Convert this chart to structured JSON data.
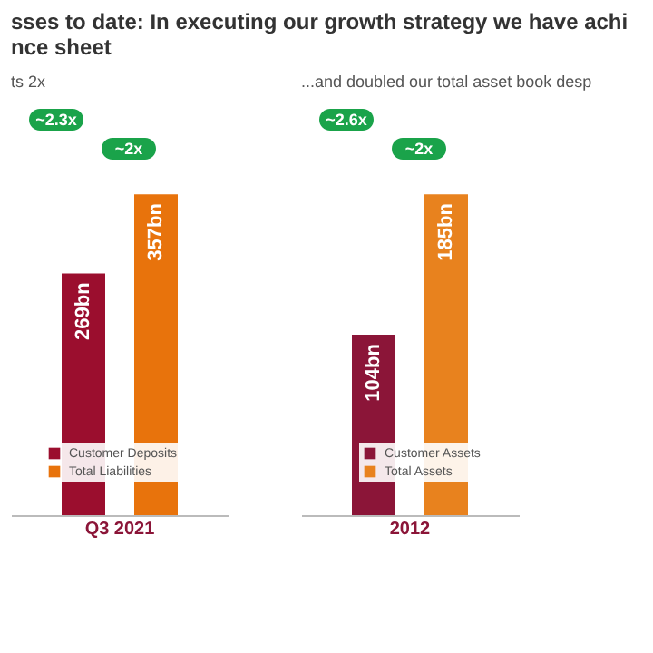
{
  "chart_data": [
    {
      "type": "bar",
      "title": "sses to date: In executing our growth strategy we have achi\nnce sheet",
      "subtitle": "ts 2x",
      "categories": [
        "Q3 2021"
      ],
      "legend": "bottom left",
      "data_labels": false,
      "annotations": [
        "~2.3x",
        "~2x"
      ],
      "series": [
        {
          "name": "Customer Deposits",
          "color": "#9b0e2e",
          "values": [
            269
          ],
          "value_labels": [
            "269bn"
          ]
        },
        {
          "name": "Total Liabilities",
          "color": "#e8730c",
          "values": [
            357
          ],
          "value_labels": [
            "357bn"
          ]
        }
      ]
    },
    {
      "type": "bar",
      "subtitle": "...and doubled our total asset book desp",
      "categories": [
        "2012"
      ],
      "legend": "bottom right",
      "data_labels": false,
      "annotations": [
        "~2.6x",
        "~2x"
      ],
      "series": [
        {
          "name": "Customer Assets",
          "color": "#8b1538",
          "values": [
            104
          ],
          "value_labels": [
            "104bn"
          ]
        },
        {
          "name": "Total Assets",
          "color": "#e8821e",
          "values": [
            185
          ],
          "value_labels": [
            "185bn"
          ]
        }
      ]
    }
  ]
}
